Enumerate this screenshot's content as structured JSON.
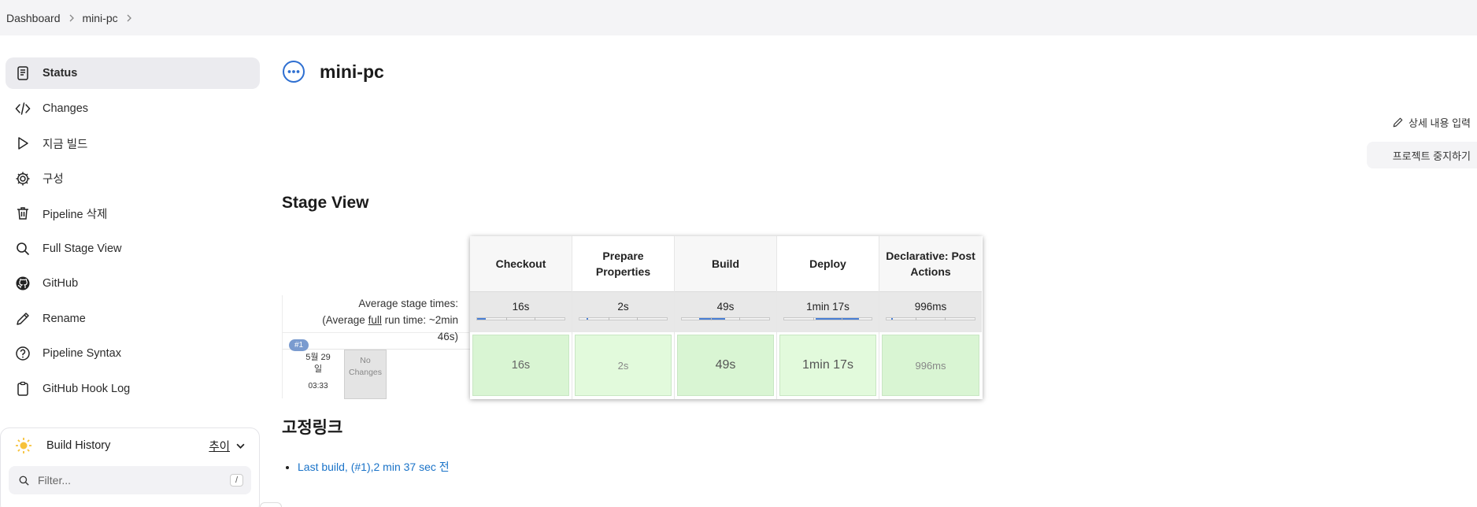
{
  "breadcrumb": [
    {
      "label": "Dashboard"
    },
    {
      "label": "mini-pc"
    }
  ],
  "sidebar": {
    "items": [
      {
        "label": "Status",
        "icon": "document-icon",
        "active": true
      },
      {
        "label": "Changes",
        "icon": "code-icon"
      },
      {
        "label": "지금 빌드",
        "icon": "play-icon"
      },
      {
        "label": "구성",
        "icon": "gear-icon"
      },
      {
        "label": "Pipeline 삭제",
        "icon": "trash-icon"
      },
      {
        "label": "Full Stage View",
        "icon": "search-icon"
      },
      {
        "label": "GitHub",
        "icon": "github-icon"
      },
      {
        "label": "Rename",
        "icon": "pencil-icon"
      },
      {
        "label": "Pipeline Syntax",
        "icon": "help-circle-icon"
      },
      {
        "label": "GitHub Hook Log",
        "icon": "clipboard-icon"
      }
    ]
  },
  "build_history": {
    "title": "Build History",
    "trend_label": "추이",
    "filter_placeholder": "Filter...",
    "shortcut": "/"
  },
  "page": {
    "title": "mini-pc",
    "status_icon": "in-progress-icon"
  },
  "actions": {
    "edit_description": "상세 내용 입력",
    "disable_project": "프로젝트 중지하기"
  },
  "stage_view": {
    "heading": "Stage View",
    "avg_label_line1": "Average stage times:",
    "avg_label_prefix": "(Average ",
    "avg_label_full": "full",
    "avg_label_suffix": " run time: ~2min",
    "avg_label_line3": "46s)",
    "run": {
      "badge": "#1",
      "date_line1": "5월 29",
      "date_line2": "일",
      "time": "03:33",
      "changes": "No Changes"
    },
    "stages": [
      {
        "name": "Checkout",
        "avg": "16s",
        "cell": "16s",
        "bar_fraction": 0.1
      },
      {
        "name": "Prepare Properties",
        "avg": "2s",
        "cell": "2s",
        "bar_fraction": 0.02
      },
      {
        "name": "Build",
        "avg": "49s",
        "cell": "49s",
        "bar_fraction": 0.3
      },
      {
        "name": "Deploy",
        "avg": "1min 17s",
        "cell": "1min 17s",
        "bar_fraction": 0.5
      },
      {
        "name": "Declarative: Post Actions",
        "avg": "996ms",
        "cell": "996ms",
        "bar_fraction": 0.01
      }
    ]
  },
  "permalinks": {
    "heading": "고정링크",
    "items": [
      {
        "label": "Last build, (#1),2 min 37 sec 전"
      }
    ]
  }
}
